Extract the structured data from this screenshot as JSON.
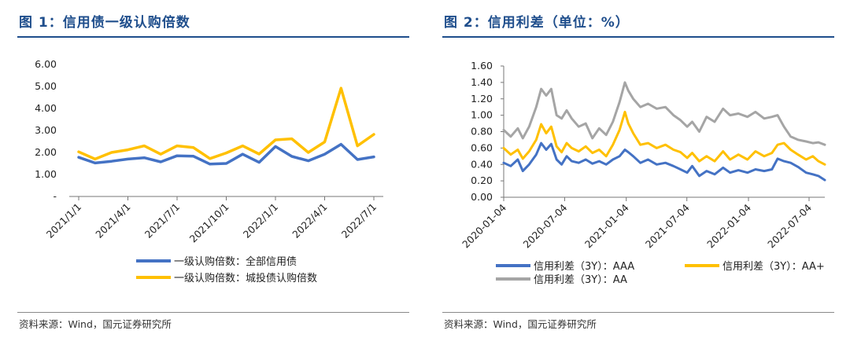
{
  "panel1": {
    "title": "图 1：信用债一级认购倍数",
    "source": "资料来源：Wind，国元证券研究所",
    "chart_data": {
      "type": "line",
      "ylim": [
        0,
        6
      ],
      "yticks": [
        0,
        1,
        2,
        3,
        4,
        5,
        6
      ],
      "ytick_labels": [
        "-",
        "1.00",
        "2.00",
        "3.00",
        "4.00",
        "5.00",
        "6.00"
      ],
      "x": [
        "2021/1",
        "2021/2",
        "2021/3",
        "2021/4",
        "2021/5",
        "2021/6",
        "2021/7",
        "2021/8",
        "2021/9",
        "2021/10",
        "2021/11",
        "2021/12",
        "2022/1",
        "2022/2",
        "2022/3",
        "2022/4",
        "2022/5",
        "2022/6",
        "2022/7"
      ],
      "xtick_labels": [
        "2021/1/1",
        "2021/4/1",
        "2021/7/1",
        "2021/10/1",
        "2022/1/1",
        "2022/4/1",
        "2022/7/1"
      ],
      "xtick_positions": [
        0,
        3,
        6,
        9,
        12,
        15,
        18
      ],
      "legend_position": "bottom",
      "series": [
        {
          "name": "一级认购倍数：全部信用债",
          "color": "#4472c4",
          "values": [
            1.78,
            1.52,
            1.6,
            1.7,
            1.76,
            1.57,
            1.85,
            1.83,
            1.47,
            1.5,
            1.92,
            1.55,
            2.27,
            1.82,
            1.62,
            1.92,
            2.37,
            1.68,
            1.8
          ]
        },
        {
          "name": "一级认购倍数：城投债认购倍数",
          "color": "#ffc000",
          "values": [
            2.03,
            1.7,
            2.0,
            2.12,
            2.3,
            1.92,
            2.3,
            2.22,
            1.72,
            1.98,
            2.3,
            1.93,
            2.57,
            2.62,
            2.0,
            2.48,
            4.92,
            2.3,
            2.82
          ]
        }
      ]
    }
  },
  "panel2": {
    "title": "图 2：信用利差（单位：%）",
    "source": "资料来源：Wind，国元证券研究所",
    "chart_data": {
      "type": "line",
      "ylim": [
        0,
        1.6
      ],
      "yticks": [
        0,
        0.2,
        0.4,
        0.6,
        0.8,
        1.0,
        1.2,
        1.4,
        1.6
      ],
      "ytick_labels": [
        "0.00",
        "0.20",
        "0.40",
        "0.60",
        "0.80",
        "1.00",
        "1.20",
        "1.40",
        "1.60"
      ],
      "x_range": [
        "2020-01-04",
        "2022-08-20"
      ],
      "xtick_labels": [
        "2020-01-04",
        "2020-07-04",
        "2021-01-04",
        "2021-07-04",
        "2022-01-04",
        "2022-07-04"
      ],
      "legend_position": "bottom",
      "series": [
        {
          "name": "信用利差（3Y）：AAA",
          "color": "#4472c4",
          "points": [
            [
              "2020-01-04",
              0.42
            ],
            [
              "2020-01-25",
              0.38
            ],
            [
              "2020-02-15",
              0.46
            ],
            [
              "2020-03-01",
              0.32
            ],
            [
              "2020-03-20",
              0.4
            ],
            [
              "2020-04-10",
              0.52
            ],
            [
              "2020-04-25",
              0.66
            ],
            [
              "2020-05-10",
              0.58
            ],
            [
              "2020-05-25",
              0.65
            ],
            [
              "2020-06-10",
              0.46
            ],
            [
              "2020-06-25",
              0.4
            ],
            [
              "2020-07-10",
              0.5
            ],
            [
              "2020-07-25",
              0.44
            ],
            [
              "2020-08-15",
              0.42
            ],
            [
              "2020-09-05",
              0.46
            ],
            [
              "2020-09-25",
              0.41
            ],
            [
              "2020-10-15",
              0.44
            ],
            [
              "2020-11-05",
              0.4
            ],
            [
              "2020-11-25",
              0.46
            ],
            [
              "2020-12-15",
              0.5
            ],
            [
              "2020-12-31",
              0.58
            ],
            [
              "2021-01-10",
              0.55
            ],
            [
              "2021-01-25",
              0.5
            ],
            [
              "2021-02-15",
              0.42
            ],
            [
              "2021-03-10",
              0.46
            ],
            [
              "2021-04-05",
              0.4
            ],
            [
              "2021-05-01",
              0.42
            ],
            [
              "2021-05-25",
              0.38
            ],
            [
              "2021-06-15",
              0.34
            ],
            [
              "2021-07-05",
              0.3
            ],
            [
              "2021-07-20",
              0.38
            ],
            [
              "2021-08-10",
              0.26
            ],
            [
              "2021-09-01",
              0.32
            ],
            [
              "2021-09-25",
              0.28
            ],
            [
              "2021-10-20",
              0.36
            ],
            [
              "2021-11-10",
              0.3
            ],
            [
              "2021-12-05",
              0.33
            ],
            [
              "2022-01-01",
              0.3
            ],
            [
              "2022-01-25",
              0.34
            ],
            [
              "2022-02-20",
              0.32
            ],
            [
              "2022-03-15",
              0.34
            ],
            [
              "2022-04-01",
              0.47
            ],
            [
              "2022-04-20",
              0.44
            ],
            [
              "2022-05-10",
              0.42
            ],
            [
              "2022-06-01",
              0.37
            ],
            [
              "2022-06-25",
              0.3
            ],
            [
              "2022-07-15",
              0.28
            ],
            [
              "2022-08-01",
              0.26
            ],
            [
              "2022-08-20",
              0.21
            ]
          ]
        },
        {
          "name": "信用利差（3Y）：AA+",
          "color": "#ffc000",
          "points": [
            [
              "2020-01-04",
              0.6
            ],
            [
              "2020-01-25",
              0.52
            ],
            [
              "2020-02-15",
              0.58
            ],
            [
              "2020-03-01",
              0.47
            ],
            [
              "2020-03-20",
              0.56
            ],
            [
              "2020-04-10",
              0.7
            ],
            [
              "2020-04-25",
              0.89
            ],
            [
              "2020-05-10",
              0.78
            ],
            [
              "2020-05-25",
              0.86
            ],
            [
              "2020-06-10",
              0.62
            ],
            [
              "2020-06-25",
              0.55
            ],
            [
              "2020-07-10",
              0.66
            ],
            [
              "2020-07-25",
              0.6
            ],
            [
              "2020-08-15",
              0.56
            ],
            [
              "2020-09-05",
              0.62
            ],
            [
              "2020-09-25",
              0.54
            ],
            [
              "2020-10-15",
              0.58
            ],
            [
              "2020-11-05",
              0.5
            ],
            [
              "2020-11-25",
              0.64
            ],
            [
              "2020-12-15",
              0.82
            ],
            [
              "2020-12-31",
              1.04
            ],
            [
              "2021-01-10",
              0.9
            ],
            [
              "2021-01-25",
              0.78
            ],
            [
              "2021-02-15",
              0.64
            ],
            [
              "2021-03-10",
              0.66
            ],
            [
              "2021-04-05",
              0.6
            ],
            [
              "2021-05-01",
              0.64
            ],
            [
              "2021-05-25",
              0.58
            ],
            [
              "2021-06-15",
              0.55
            ],
            [
              "2021-07-05",
              0.48
            ],
            [
              "2021-07-20",
              0.54
            ],
            [
              "2021-08-10",
              0.44
            ],
            [
              "2021-09-01",
              0.5
            ],
            [
              "2021-09-25",
              0.44
            ],
            [
              "2021-10-20",
              0.56
            ],
            [
              "2021-11-10",
              0.46
            ],
            [
              "2021-12-05",
              0.52
            ],
            [
              "2022-01-01",
              0.46
            ],
            [
              "2022-01-25",
              0.56
            ],
            [
              "2022-02-20",
              0.5
            ],
            [
              "2022-03-15",
              0.54
            ],
            [
              "2022-04-01",
              0.64
            ],
            [
              "2022-04-20",
              0.66
            ],
            [
              "2022-05-10",
              0.58
            ],
            [
              "2022-06-01",
              0.52
            ],
            [
              "2022-06-25",
              0.46
            ],
            [
              "2022-07-15",
              0.5
            ],
            [
              "2022-08-01",
              0.44
            ],
            [
              "2022-08-20",
              0.4
            ]
          ]
        },
        {
          "name": "信用利差（3Y）：AA",
          "color": "#a5a5a5",
          "points": [
            [
              "2020-01-04",
              0.82
            ],
            [
              "2020-01-25",
              0.74
            ],
            [
              "2020-02-15",
              0.84
            ],
            [
              "2020-03-01",
              0.72
            ],
            [
              "2020-03-20",
              0.86
            ],
            [
              "2020-04-10",
              1.1
            ],
            [
              "2020-04-25",
              1.32
            ],
            [
              "2020-05-10",
              1.24
            ],
            [
              "2020-05-25",
              1.32
            ],
            [
              "2020-06-10",
              1.0
            ],
            [
              "2020-06-25",
              0.96
            ],
            [
              "2020-07-10",
              1.06
            ],
            [
              "2020-07-25",
              0.96
            ],
            [
              "2020-08-15",
              0.86
            ],
            [
              "2020-09-05",
              0.9
            ],
            [
              "2020-09-25",
              0.72
            ],
            [
              "2020-10-15",
              0.84
            ],
            [
              "2020-11-05",
              0.76
            ],
            [
              "2020-11-25",
              0.92
            ],
            [
              "2020-12-15",
              1.16
            ],
            [
              "2020-12-31",
              1.4
            ],
            [
              "2021-01-10",
              1.3
            ],
            [
              "2021-01-25",
              1.2
            ],
            [
              "2021-02-15",
              1.1
            ],
            [
              "2021-03-10",
              1.14
            ],
            [
              "2021-04-05",
              1.08
            ],
            [
              "2021-05-01",
              1.1
            ],
            [
              "2021-05-25",
              1.0
            ],
            [
              "2021-06-15",
              0.94
            ],
            [
              "2021-07-05",
              0.86
            ],
            [
              "2021-07-20",
              0.92
            ],
            [
              "2021-08-10",
              0.8
            ],
            [
              "2021-09-01",
              0.98
            ],
            [
              "2021-09-25",
              0.92
            ],
            [
              "2021-10-20",
              1.08
            ],
            [
              "2021-11-10",
              1.0
            ],
            [
              "2021-12-05",
              1.02
            ],
            [
              "2022-01-01",
              0.98
            ],
            [
              "2022-01-25",
              1.04
            ],
            [
              "2022-02-20",
              0.96
            ],
            [
              "2022-03-15",
              0.98
            ],
            [
              "2022-04-01",
              1.0
            ],
            [
              "2022-04-20",
              0.86
            ],
            [
              "2022-05-10",
              0.74
            ],
            [
              "2022-06-01",
              0.7
            ],
            [
              "2022-06-25",
              0.68
            ],
            [
              "2022-07-15",
              0.66
            ],
            [
              "2022-08-01",
              0.67
            ],
            [
              "2022-08-20",
              0.64
            ]
          ]
        }
      ]
    }
  }
}
